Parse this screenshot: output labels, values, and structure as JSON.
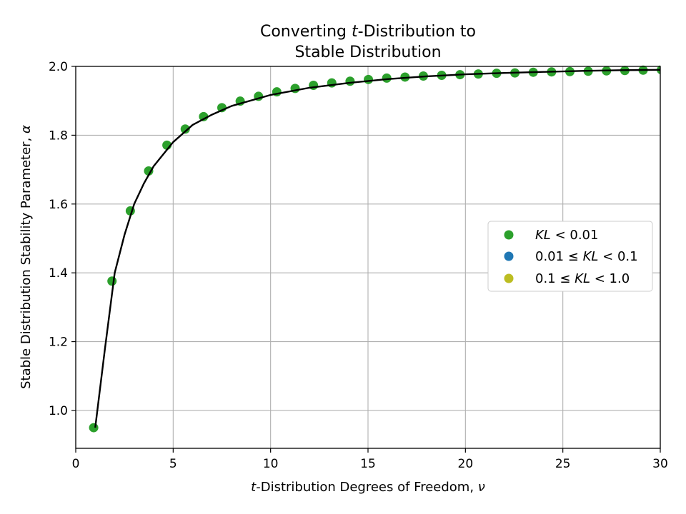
{
  "chart_data": {
    "type": "scatter",
    "title_line1_pre": "Converting ",
    "title_line1_var": "t",
    "title_line1_post": "-Distribution to",
    "title_line2": "Stable Distribution",
    "xlabel_var": "t",
    "xlabel_main": "-Distribution Degrees of Freedom, ",
    "xlabel_sym": "ν",
    "ylabel_main": "Stable Distribution Stability Parameter, ",
    "ylabel_sym": "α",
    "xlim": [
      0,
      30
    ],
    "ylim": [
      0.89,
      2.0
    ],
    "xticks": [
      0,
      5,
      10,
      15,
      20,
      25,
      30
    ],
    "yticks": [
      1.0,
      1.2,
      1.4,
      1.6,
      1.8,
      2.0
    ],
    "xtick_labels": [
      "0",
      "5",
      "10",
      "15",
      "20",
      "25",
      "30"
    ],
    "ytick_labels": [
      "1.0",
      "1.2",
      "1.4",
      "1.6",
      "1.8",
      "2.0"
    ],
    "grid": true,
    "legend_position": "center-right",
    "legend": [
      {
        "pre": "",
        "var": "KL",
        "post": " < 0.01",
        "color": "#2ca02c"
      },
      {
        "pre": "0.01 ≤ ",
        "var": "KL",
        "post": " < 0.1",
        "color": "#1f77b4"
      },
      {
        "pre": "0.1 ≤ ",
        "var": "KL",
        "post": " < 1.0",
        "color": "#bcbd22"
      }
    ],
    "series": [
      {
        "name": "KL < 0.01",
        "color": "#2ca02c",
        "x": [
          0.92,
          1.86,
          2.8,
          3.74,
          4.68,
          5.62,
          6.56,
          7.5,
          8.44,
          9.38,
          10.32,
          11.26,
          12.2,
          13.14,
          14.08,
          15.02,
          15.96,
          16.9,
          17.84,
          18.78,
          19.72,
          20.66,
          21.6,
          22.54,
          23.48,
          24.42,
          25.36,
          26.3,
          27.24,
          28.18,
          29.12,
          30.06
        ],
        "y": [
          0.95,
          1.376,
          1.58,
          1.696,
          1.771,
          1.818,
          1.854,
          1.88,
          1.899,
          1.913,
          1.926,
          1.936,
          1.945,
          1.952,
          1.957,
          1.962,
          1.966,
          1.969,
          1.972,
          1.974,
          1.976,
          1.978,
          1.98,
          1.981,
          1.983,
          1.984,
          1.985,
          1.986,
          1.987,
          1.988,
          1.989,
          1.99
        ]
      }
    ],
    "fit_line": {
      "color": "#000000",
      "x": [
        1.0,
        1.5,
        2.0,
        2.5,
        3.0,
        3.5,
        4.0,
        5.0,
        6.0,
        7.0,
        8.0,
        10.0,
        12.0,
        14.0,
        16.0,
        18.0,
        20.0,
        22.0,
        24.0,
        26.0,
        28.0,
        30.0
      ],
      "y": [
        0.95,
        1.18,
        1.4,
        1.51,
        1.6,
        1.66,
        1.71,
        1.78,
        1.83,
        1.86,
        1.885,
        1.917,
        1.938,
        1.952,
        1.963,
        1.971,
        1.977,
        1.981,
        1.984,
        1.987,
        1.989,
        1.99
      ]
    }
  }
}
